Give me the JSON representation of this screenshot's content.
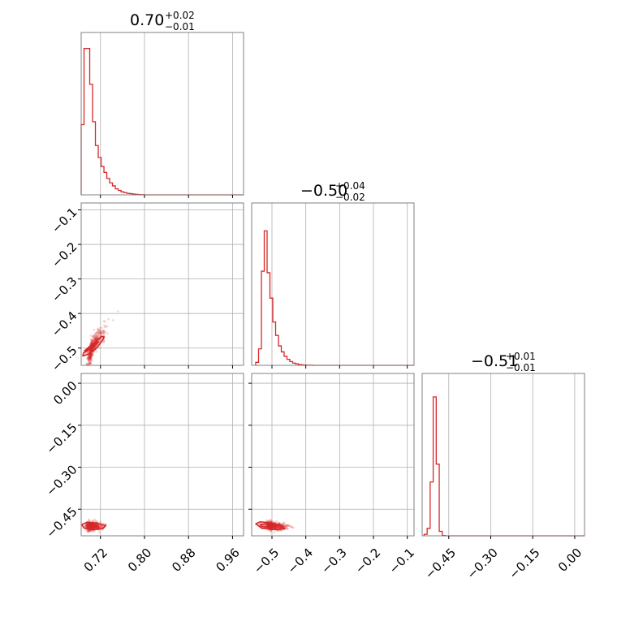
{
  "chart_data": {
    "type": "corner",
    "color": "#d62728",
    "grid": true,
    "params": [
      {
        "title_main": "0.70",
        "title_plus": "+0.02",
        "title_minus": "−0.01",
        "range": [
          0.685,
          0.98
        ],
        "ticks": [
          0.72,
          0.8,
          0.88,
          0.96
        ],
        "tick_labels": [
          "0.72",
          "0.80",
          "0.88",
          "0.96"
        ],
        "hist": {
          "start": 0.685,
          "step": 0.00517,
          "counts": [
            0.47,
            0.98,
            0.98,
            0.74,
            0.49,
            0.33,
            0.25,
            0.19,
            0.15,
            0.11,
            0.08,
            0.06,
            0.04,
            0.03,
            0.02,
            0.015,
            0.01,
            0.008,
            0.005,
            0.003,
            0.002,
            0.001
          ]
        }
      },
      {
        "title_main": "−0.50",
        "title_plus": "+0.04",
        "title_minus": "−0.02",
        "range": [
          -0.56,
          -0.08
        ],
        "ticks": [
          -0.5,
          -0.4,
          -0.3,
          -0.2,
          -0.1
        ],
        "tick_labels": [
          "−0.5",
          "−0.4",
          "−0.3",
          "−0.2",
          "−0.1"
        ],
        "hist": {
          "start": -0.548,
          "step": 0.0084,
          "counts": [
            0.02,
            0.11,
            0.63,
            0.9,
            0.62,
            0.45,
            0.29,
            0.2,
            0.13,
            0.09,
            0.06,
            0.04,
            0.025,
            0.015,
            0.01,
            0.005,
            0.003,
            0.002,
            0.001,
            0.001
          ]
        }
      },
      {
        "title_main": "−0.51",
        "title_plus": "+0.01",
        "title_minus": "−0.01",
        "range": [
          -0.545,
          0.035
        ],
        "ticks": [
          -0.45,
          -0.3,
          -0.15,
          0.0
        ],
        "tick_labels": [
          "−0.45",
          "−0.30",
          "−0.15",
          "0.00"
        ],
        "hist": {
          "start": -0.538,
          "step": 0.0108,
          "counts": [
            0.01,
            0.05,
            0.36,
            0.93,
            0.48,
            0.03,
            0.002
          ]
        }
      }
    ],
    "scatter": [
      {
        "x": 0,
        "y": 1,
        "center": [
          0.705,
          -0.495
        ],
        "spread": [
          0.012,
          0.028
        ],
        "corr": 0.88,
        "contours": [
          [
            [
              0.688,
              -0.523
            ],
            [
              0.698,
              -0.518
            ],
            [
              0.712,
              -0.502
            ],
            [
              0.722,
              -0.482
            ],
            [
              0.727,
              -0.468
            ],
            [
              0.722,
              -0.466
            ],
            [
              0.71,
              -0.484
            ],
            [
              0.697,
              -0.503
            ],
            [
              0.689,
              -0.515
            ]
          ],
          [
            [
              0.692,
              -0.512
            ],
            [
              0.704,
              -0.5
            ],
            [
              0.716,
              -0.482
            ],
            [
              0.712,
              -0.481
            ],
            [
              0.699,
              -0.497
            ],
            [
              0.691,
              -0.508
            ]
          ]
        ]
      },
      {
        "x": 0,
        "y": 2,
        "center": [
          0.702,
          -0.51
        ],
        "spread": [
          0.01,
          0.008
        ],
        "corr": 0.0,
        "contours": [
          [
            [
              0.686,
              -0.505
            ],
            [
              0.695,
              -0.497
            ],
            [
              0.712,
              -0.5
            ],
            [
              0.73,
              -0.508
            ],
            [
              0.724,
              -0.52
            ],
            [
              0.704,
              -0.523
            ],
            [
              0.69,
              -0.517
            ]
          ],
          [
            [
              0.694,
              -0.508
            ],
            [
              0.706,
              -0.504
            ],
            [
              0.716,
              -0.512
            ],
            [
              0.702,
              -0.515
            ]
          ]
        ]
      },
      {
        "x": 1,
        "y": 2,
        "center": [
          -0.5,
          -0.51
        ],
        "spread": [
          0.022,
          0.007
        ],
        "corr": -0.2,
        "contours": [
          [
            [
              -0.548,
              -0.502
            ],
            [
              -0.535,
              -0.495
            ],
            [
              -0.505,
              -0.498
            ],
            [
              -0.475,
              -0.508
            ],
            [
              -0.462,
              -0.52
            ],
            [
              -0.49,
              -0.523
            ],
            [
              -0.53,
              -0.518
            ]
          ],
          [
            [
              -0.535,
              -0.505
            ],
            [
              -0.515,
              -0.501
            ],
            [
              -0.49,
              -0.508
            ],
            [
              -0.505,
              -0.515
            ],
            [
              -0.53,
              -0.512
            ]
          ]
        ]
      }
    ],
    "y_tick_labels": {
      "1": {
        "ticks": [
          -0.1,
          -0.2,
          -0.3,
          -0.4,
          -0.5
        ],
        "labels": [
          "−0.1",
          "−0.2",
          "−0.3",
          "−0.4",
          "−0.5"
        ],
        "range": [
          -0.55,
          -0.08
        ]
      },
      "2": {
        "ticks": [
          0.0,
          -0.15,
          -0.3,
          -0.45
        ],
        "labels": [
          "0.00",
          "−0.15",
          "−0.30",
          "−0.45"
        ],
        "range": [
          -0.545,
          0.035
        ]
      }
    }
  }
}
